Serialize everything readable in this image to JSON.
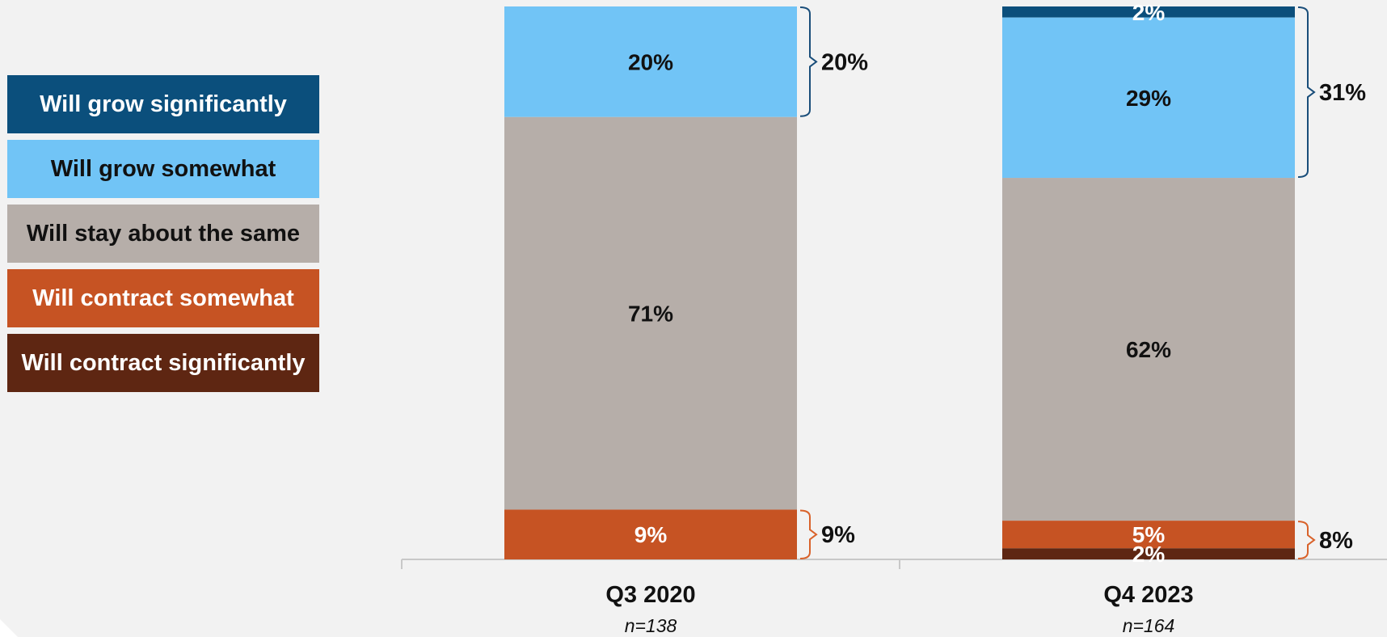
{
  "legend": [
    {
      "label": "Will grow significantly",
      "color": "#0b4f7c",
      "text_color": "#ffffff"
    },
    {
      "label": "Will grow somewhat",
      "color": "#71c4f6",
      "text_color": "#111111"
    },
    {
      "label": "Will stay about the same",
      "color": "#b6aea9",
      "text_color": "#111111"
    },
    {
      "label": "Will contract somewhat",
      "color": "#c65323",
      "text_color": "#ffffff"
    },
    {
      "label": "Will contract significantly",
      "color": "#5e2612",
      "text_color": "#ffffff"
    }
  ],
  "chart_data": {
    "type": "bar",
    "stacked": true,
    "categories": [
      "Q3 2020",
      "Q4 2023"
    ],
    "category_notes": [
      "n=138",
      "n=164"
    ],
    "series": [
      {
        "name": "Will grow significantly",
        "values": [
          0,
          2
        ],
        "labels": [
          "",
          "2%"
        ],
        "color": "#0b4f7c",
        "label_color": "#ffffff"
      },
      {
        "name": "Will grow somewhat",
        "values": [
          20,
          29
        ],
        "labels": [
          "20%",
          "29%"
        ],
        "color": "#71c4f6",
        "label_color": "#111111"
      },
      {
        "name": "Will stay about the same",
        "values": [
          71,
          62
        ],
        "labels": [
          "71%",
          "62%"
        ],
        "color": "#b6aea9",
        "label_color": "#111111"
      },
      {
        "name": "Will contract somewhat",
        "values": [
          9,
          5
        ],
        "labels": [
          "9%",
          "5%"
        ],
        "color": "#c65323",
        "label_color": "#ffffff"
      },
      {
        "name": "Will contract significantly",
        "values": [
          0,
          2
        ],
        "labels": [
          "",
          "2%"
        ],
        "color": "#5e2612",
        "label_color": "#ffffff"
      }
    ],
    "brackets": [
      {
        "group": "grow",
        "bracket_color": "#1a4e7a",
        "labels": [
          "20%",
          "31%"
        ]
      },
      {
        "group": "contract",
        "bracket_color": "#d9622a",
        "labels": [
          "9%",
          "8%"
        ]
      }
    ],
    "ylim": [
      0,
      100
    ],
    "xlabel": "",
    "ylabel": "",
    "title": "",
    "legend_position": "left"
  }
}
